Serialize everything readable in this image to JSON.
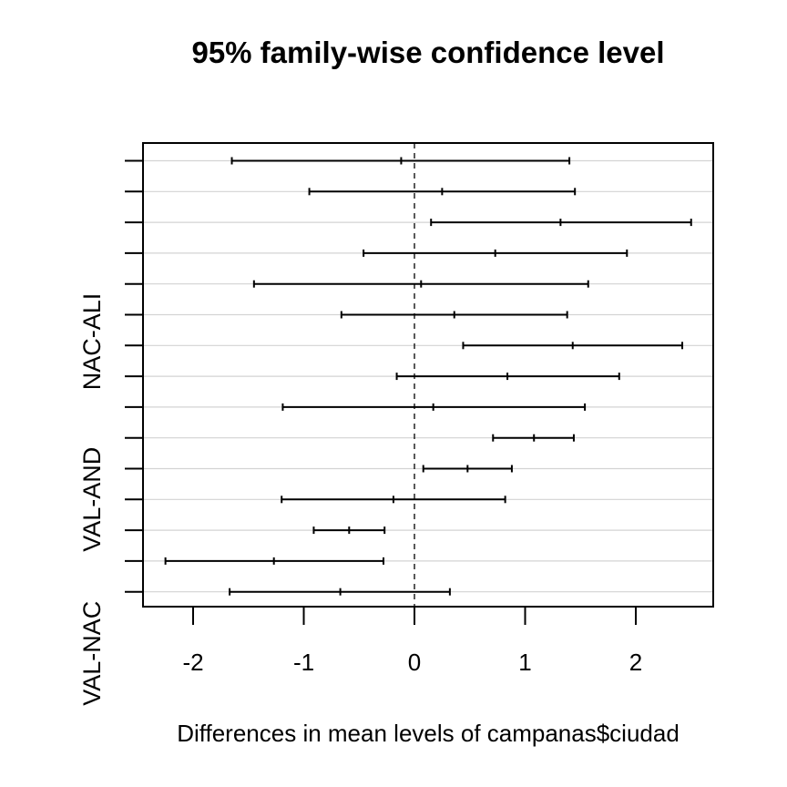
{
  "chart_data": {
    "type": "interval",
    "title": "95% family-wise confidence level",
    "xlabel": "Differences in mean levels of campanas$ciudad",
    "ylabel": "",
    "xlim": [
      -2.5,
      2.6
    ],
    "x_ticks": [
      -2,
      -1,
      0,
      1,
      2
    ],
    "x_tick_labels": [
      "-2",
      "-1",
      "0",
      "1",
      "2"
    ],
    "reference_line": 0,
    "grid": true,
    "y_labels_shown": [
      {
        "row": 4,
        "label": "NAC-ALI"
      },
      {
        "row": 9,
        "label": "VAL-AND"
      },
      {
        "row": 14,
        "label": "VAL-NAC"
      }
    ],
    "intervals": [
      {
        "lwr": -1.65,
        "est": -0.12,
        "upr": 1.4
      },
      {
        "lwr": -0.95,
        "est": 0.25,
        "upr": 1.45
      },
      {
        "lwr": 0.15,
        "est": 1.32,
        "upr": 2.5
      },
      {
        "lwr": -0.46,
        "est": 0.73,
        "upr": 1.92
      },
      {
        "lwr": -1.45,
        "est": 0.06,
        "upr": 1.57
      },
      {
        "lwr": -0.66,
        "est": 0.36,
        "upr": 1.38
      },
      {
        "lwr": 0.44,
        "est": 1.43,
        "upr": 2.42
      },
      {
        "lwr": -0.16,
        "est": 0.84,
        "upr": 1.85
      },
      {
        "lwr": -1.19,
        "est": 0.17,
        "upr": 1.54
      },
      {
        "lwr": 0.71,
        "est": 1.08,
        "upr": 1.44
      },
      {
        "lwr": 0.08,
        "est": 0.48,
        "upr": 0.88
      },
      {
        "lwr": -1.2,
        "est": -0.19,
        "upr": 0.82
      },
      {
        "lwr": -0.91,
        "est": -0.59,
        "upr": -0.27
      },
      {
        "lwr": -2.25,
        "est": -1.27,
        "upr": -0.28
      },
      {
        "lwr": -1.67,
        "est": -0.67,
        "upr": 0.32
      }
    ]
  }
}
